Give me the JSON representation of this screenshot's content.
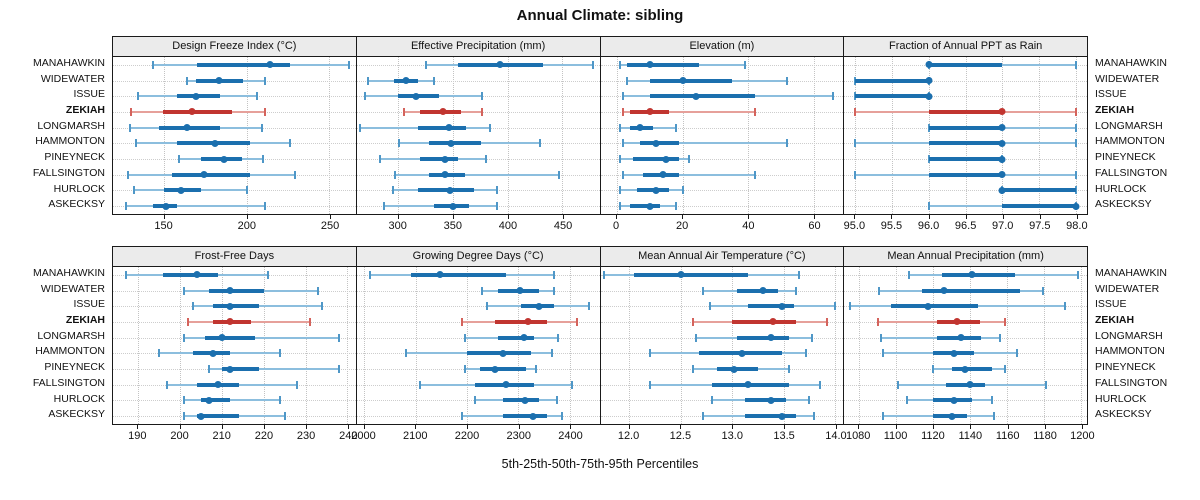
{
  "title": "Annual Climate: sibling",
  "caption": "5th-25th-50th-75th-95th Percentiles",
  "highlight_site": "ZEKIAH",
  "sites": [
    "MANAHAWKIN",
    "WIDEWATER",
    "ISSUE",
    "ZEKIAH",
    "LONGMARSH",
    "HAMMONTON",
    "PINEYNECK",
    "FALLSINGTON",
    "HURLOCK",
    "ASKECKSY"
  ],
  "colors": {
    "blue": "#1b6fae",
    "blue_light": "#8cbede",
    "blue_cap": "#4f97c7",
    "red": "#c13530",
    "red_light": "#e6a09a",
    "red_cap": "#d4635c",
    "header_bg": "#ebebeb",
    "border": "#1a1a1a",
    "grid": "#c8c8c8"
  },
  "chart_data": {
    "type": "scatter",
    "variant": "percentile-interval-dotplot",
    "percentiles": [
      5,
      25,
      50,
      75,
      95
    ],
    "categories": [
      "MANAHAWKIN",
      "WIDEWATER",
      "ISSUE",
      "ZEKIAH",
      "LONGMARSH",
      "HAMMONTON",
      "PINEYNECK",
      "FALLSINGTON",
      "HURLOCK",
      "ASKECKSY"
    ],
    "highlight": "ZEKIAH",
    "legend_position": "none",
    "grid": "dotted",
    "panels": [
      {
        "row": 0,
        "title": "Design Freeze Index (°C)",
        "xlim": [
          119,
          266
        ],
        "ticks": [
          150,
          200,
          250
        ],
        "decimals": 0,
        "series": [
          {
            "name": "MANAHAWKIN",
            "values": [
              143,
              170,
              214,
              226,
              262
            ]
          },
          {
            "name": "WIDEWATER",
            "values": [
              164,
              169,
              183,
              198,
              211
            ]
          },
          {
            "name": "ISSUE",
            "values": [
              134,
              158,
              169,
              184,
              206
            ]
          },
          {
            "name": "ZEKIAH",
            "values": [
              130,
              149,
              167,
              191,
              211
            ]
          },
          {
            "name": "LONGMARSH",
            "values": [
              129,
              147,
              164,
              184,
              209
            ]
          },
          {
            "name": "HAMMONTON",
            "values": [
              133,
              158,
              181,
              202,
              226
            ]
          },
          {
            "name": "PINEYNECK",
            "values": [
              159,
              172,
              186,
              197,
              210
            ]
          },
          {
            "name": "FALLSINGTON",
            "values": [
              128,
              155,
              174,
              202,
              229
            ]
          },
          {
            "name": "HURLOCK",
            "values": [
              132,
              150,
              160,
              172,
              200
            ]
          },
          {
            "name": "ASKECKSY",
            "values": [
              127,
              143,
              151,
              158,
              211
            ]
          }
        ]
      },
      {
        "row": 0,
        "title": "Effective Precipitation (mm)",
        "xlim": [
          262,
          484
        ],
        "ticks": [
          300,
          350,
          400,
          450
        ],
        "decimals": 0,
        "series": [
          {
            "name": "MANAHAWKIN",
            "values": [
              325,
              355,
              393,
              432,
              478
            ]
          },
          {
            "name": "WIDEWATER",
            "values": [
              272,
              296,
              307,
              318,
              333
            ]
          },
          {
            "name": "ISSUE",
            "values": [
              270,
              300,
              316,
              337,
              377
            ]
          },
          {
            "name": "ZEKIAH",
            "values": [
              305,
              320,
              341,
              357,
              377
            ]
          },
          {
            "name": "LONGMARSH",
            "values": [
              265,
              318,
              346,
              362,
              384
            ]
          },
          {
            "name": "HAMMONTON",
            "values": [
              301,
              328,
              348,
              376,
              430
            ]
          },
          {
            "name": "PINEYNECK",
            "values": [
              283,
              320,
              343,
              355,
              380
            ]
          },
          {
            "name": "FALLSINGTON",
            "values": [
              297,
              328,
              343,
              361,
              447
            ]
          },
          {
            "name": "HURLOCK",
            "values": [
              295,
              318,
              347,
              369,
              390
            ]
          },
          {
            "name": "ASKECKSY",
            "values": [
              287,
              333,
              350,
              365,
              390
            ]
          }
        ]
      },
      {
        "row": 0,
        "title": "Elevation (m)",
        "xlim": [
          -5,
          69
        ],
        "ticks": [
          0,
          20,
          40,
          60
        ],
        "decimals": 0,
        "series": [
          {
            "name": "MANAHAWKIN",
            "values": [
              1,
              3,
              10,
              25,
              39
            ]
          },
          {
            "name": "WIDEWATER",
            "values": [
              3,
              10,
              20,
              35,
              52
            ]
          },
          {
            "name": "ISSUE",
            "values": [
              2,
              10,
              24,
              42,
              66
            ]
          },
          {
            "name": "ZEKIAH",
            "values": [
              2,
              4,
              10,
              16,
              42
            ]
          },
          {
            "name": "LONGMARSH",
            "values": [
              1,
              4,
              7,
              11,
              18
            ]
          },
          {
            "name": "HAMMONTON",
            "values": [
              2,
              7,
              12,
              19,
              52
            ]
          },
          {
            "name": "PINEYNECK",
            "values": [
              1,
              5,
              15,
              19,
              22
            ]
          },
          {
            "name": "FALLSINGTON",
            "values": [
              2,
              8,
              14,
              19,
              42
            ]
          },
          {
            "name": "HURLOCK",
            "values": [
              1,
              6,
              12,
              16,
              20
            ]
          },
          {
            "name": "ASKECKSY",
            "values": [
              1,
              4,
              10,
              13,
              18
            ]
          }
        ]
      },
      {
        "row": 0,
        "title": "Fraction of Annual PPT as Rain",
        "xlim": [
          94.85,
          98.15
        ],
        "ticks": [
          95.0,
          95.5,
          96.0,
          96.5,
          97.0,
          97.5,
          98.0
        ],
        "decimals": 1,
        "series": [
          {
            "name": "MANAHAWKIN",
            "values": [
              96,
              96,
              96,
              97,
              98
            ]
          },
          {
            "name": "WIDEWATER",
            "values": [
              95,
              95,
              96,
              96,
              96
            ]
          },
          {
            "name": "ISSUE",
            "values": [
              95,
              95,
              96,
              96,
              96
            ]
          },
          {
            "name": "ZEKIAH",
            "values": [
              95,
              96,
              97,
              97,
              98
            ]
          },
          {
            "name": "LONGMARSH",
            "values": [
              96,
              96,
              97,
              97,
              98
            ]
          },
          {
            "name": "HAMMONTON",
            "values": [
              95,
              96,
              97,
              97,
              98
            ]
          },
          {
            "name": "PINEYNECK",
            "values": [
              96,
              96,
              97,
              97,
              97
            ]
          },
          {
            "name": "FALLSINGTON",
            "values": [
              95,
              96,
              97,
              97,
              98
            ]
          },
          {
            "name": "HURLOCK",
            "values": [
              97,
              97,
              97,
              98,
              98
            ]
          },
          {
            "name": "ASKECKSY",
            "values": [
              96,
              97,
              98,
              98,
              98
            ]
          }
        ]
      },
      {
        "row": 1,
        "title": "Frost-Free Days",
        "xlim": [
          184,
          242
        ],
        "ticks": [
          190,
          200,
          210,
          220,
          230,
          240
        ],
        "decimals": 0,
        "series": [
          {
            "name": "MANAHAWKIN",
            "values": [
              187,
              196,
              204,
              209,
              221
            ]
          },
          {
            "name": "WIDEWATER",
            "values": [
              201,
              207,
              212,
              220,
              233
            ]
          },
          {
            "name": "ISSUE",
            "values": [
              203,
              208,
              212,
              219,
              234
            ]
          },
          {
            "name": "ZEKIAH",
            "values": [
              202,
              208,
              212,
              217,
              231
            ]
          },
          {
            "name": "LONGMARSH",
            "values": [
              201,
              206,
              210,
              218,
              238
            ]
          },
          {
            "name": "HAMMONTON",
            "values": [
              195,
              203,
              208,
              212,
              224
            ]
          },
          {
            "name": "PINEYNECK",
            "values": [
              207,
              210,
              212,
              219,
              238
            ]
          },
          {
            "name": "FALLSINGTON",
            "values": [
              197,
              204,
              209,
              214,
              228
            ]
          },
          {
            "name": "HURLOCK",
            "values": [
              201,
              205,
              207,
              212,
              224
            ]
          },
          {
            "name": "ASKECKSY",
            "values": [
              201,
              204,
              205,
              214,
              225
            ]
          }
        ]
      },
      {
        "row": 1,
        "title": "Growing Degree Days (°C)",
        "xlim": [
          1985,
          2458
        ],
        "ticks": [
          2000,
          2100,
          2200,
          2300,
          2400
        ],
        "decimals": 0,
        "series": [
          {
            "name": "MANAHAWKIN",
            "values": [
              2010,
              2090,
              2148,
              2275,
              2370
            ]
          },
          {
            "name": "WIDEWATER",
            "values": [
              2230,
              2260,
              2303,
              2340,
              2370
            ]
          },
          {
            "name": "ISSUE",
            "values": [
              2238,
              2305,
              2340,
              2370,
              2438
            ]
          },
          {
            "name": "ZEKIAH",
            "values": [
              2190,
              2255,
              2318,
              2355,
              2415
            ]
          },
          {
            "name": "LONGMARSH",
            "values": [
              2195,
              2260,
              2310,
              2330,
              2378
            ]
          },
          {
            "name": "HAMMONTON",
            "values": [
              2080,
              2200,
              2270,
              2325,
              2365
            ]
          },
          {
            "name": "PINEYNECK",
            "values": [
              2195,
              2225,
              2255,
              2315,
              2335
            ]
          },
          {
            "name": "FALLSINGTON",
            "values": [
              2108,
              2215,
              2275,
              2330,
              2405
            ]
          },
          {
            "name": "HURLOCK",
            "values": [
              2215,
              2270,
              2312,
              2340,
              2375
            ]
          },
          {
            "name": "ASKECKSY",
            "values": [
              2190,
              2270,
              2328,
              2355,
              2385
            ]
          }
        ]
      },
      {
        "row": 1,
        "title": "Mean Annual Air Temperature (°C)",
        "xlim": [
          11.72,
          14.08
        ],
        "ticks": [
          12.0,
          12.5,
          13.0,
          13.5,
          14.0
        ],
        "decimals": 1,
        "series": [
          {
            "name": "MANAHAWKIN",
            "values": [
              11.75,
              12.05,
              12.5,
              13.15,
              13.65
            ]
          },
          {
            "name": "WIDEWATER",
            "values": [
              12.72,
              13.05,
              13.3,
              13.45,
              13.62
            ]
          },
          {
            "name": "ISSUE",
            "values": [
              12.78,
              13.15,
              13.48,
              13.6,
              14.0
            ]
          },
          {
            "name": "ZEKIAH",
            "values": [
              12.62,
              13.0,
              13.4,
              13.62,
              13.92
            ]
          },
          {
            "name": "LONGMARSH",
            "values": [
              12.65,
              13.05,
              13.38,
              13.55,
              13.78
            ]
          },
          {
            "name": "HAMMONTON",
            "values": [
              12.2,
              12.68,
              13.1,
              13.48,
              13.72
            ]
          },
          {
            "name": "PINEYNECK",
            "values": [
              12.62,
              12.85,
              13.02,
              13.25,
              13.55
            ]
          },
          {
            "name": "FALLSINGTON",
            "values": [
              12.2,
              12.8,
              13.15,
              13.55,
              13.85
            ]
          },
          {
            "name": "HURLOCK",
            "values": [
              12.8,
              13.12,
              13.38,
              13.52,
              13.75
            ]
          },
          {
            "name": "ASKECKSY",
            "values": [
              12.72,
              13.12,
              13.48,
              13.62,
              13.8
            ]
          }
        ]
      },
      {
        "row": 1,
        "title": "Mean Annual Precipitation (mm)",
        "xlim": [
          1072,
          1203
        ],
        "ticks": [
          1080,
          1100,
          1120,
          1140,
          1160,
          1180,
          1200
        ],
        "decimals": 0,
        "series": [
          {
            "name": "MANAHAWKIN",
            "values": [
              1107,
              1125,
              1141,
              1164,
              1198
            ]
          },
          {
            "name": "WIDEWATER",
            "values": [
              1091,
              1114,
              1126,
              1167,
              1179
            ]
          },
          {
            "name": "ISSUE",
            "values": [
              1075,
              1097,
              1117,
              1144,
              1191
            ]
          },
          {
            "name": "ZEKIAH",
            "values": [
              1090,
              1122,
              1133,
              1145,
              1159
            ]
          },
          {
            "name": "LONGMARSH",
            "values": [
              1092,
              1122,
              1135,
              1146,
              1156
            ]
          },
          {
            "name": "HAMMONTON",
            "values": [
              1093,
              1120,
              1131,
              1142,
              1165
            ]
          },
          {
            "name": "PINEYNECK",
            "values": [
              1120,
              1130,
              1137,
              1152,
              1159
            ]
          },
          {
            "name": "FALLSINGTON",
            "values": [
              1101,
              1127,
              1140,
              1148,
              1181
            ]
          },
          {
            "name": "HURLOCK",
            "values": [
              1106,
              1120,
              1131,
              1141,
              1152
            ]
          },
          {
            "name": "ASKECKSY",
            "values": [
              1093,
              1120,
              1130,
              1138,
              1153
            ]
          }
        ]
      }
    ]
  }
}
